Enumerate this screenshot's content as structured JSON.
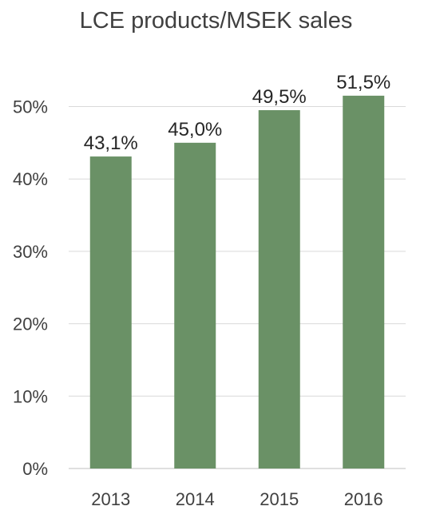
{
  "chart_data": {
    "type": "bar",
    "title": "LCE products/MSEK sales",
    "xlabel": "",
    "ylabel": "",
    "categories": [
      "2013",
      "2014",
      "2015",
      "2016"
    ],
    "values": [
      43.1,
      45.0,
      49.5,
      51.5
    ],
    "data_labels": [
      "43,1%",
      "45,0%",
      "49,5%",
      "51,5%"
    ],
    "ylim": [
      0,
      50
    ],
    "yticks": [
      0,
      10,
      20,
      30,
      40,
      50
    ],
    "ytick_labels": [
      "0%",
      "10%",
      "20%",
      "30%",
      "40%",
      "50%"
    ],
    "grid": true,
    "legend": "none",
    "bar_color": "#6a9166"
  }
}
